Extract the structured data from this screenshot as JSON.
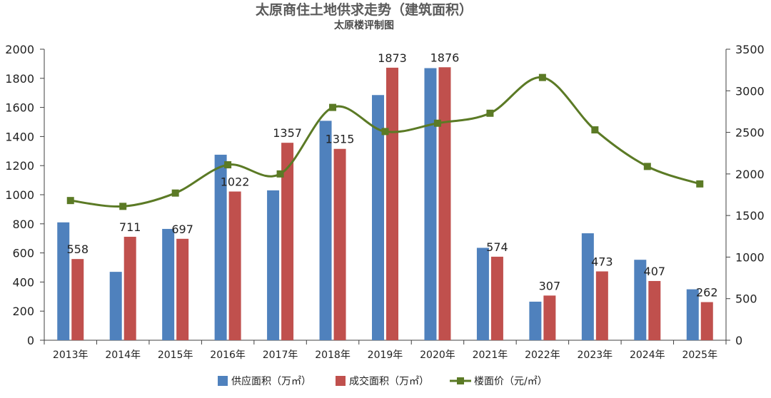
{
  "chart_data": {
    "type": "bar",
    "title": "太原商住土地供求走势（建筑面积）",
    "subtitle": "太原楼评制图",
    "categories": [
      "2013年",
      "2014年",
      "2015年",
      "2016年",
      "2017年",
      "2018年",
      "2019年",
      "2020年",
      "2021年",
      "2022年",
      "2023年",
      "2024年",
      "2025年"
    ],
    "series": [
      {
        "name": "供应面积（万㎡）",
        "type": "bar",
        "axis": "left",
        "color": "#4f81bd",
        "values": [
          810,
          470,
          765,
          1275,
          1030,
          1508,
          1685,
          1870,
          635,
          265,
          735,
          553,
          350
        ]
      },
      {
        "name": "成交面积（万㎡）",
        "type": "bar",
        "axis": "left",
        "color": "#c0504d",
        "values": [
          558,
          711,
          697,
          1022,
          1357,
          1315,
          1873,
          1876,
          574,
          307,
          473,
          407,
          262
        ]
      },
      {
        "name": "楼面价（元/㎡）",
        "type": "line",
        "axis": "right",
        "color": "#5b7a25",
        "values": [
          1680,
          1610,
          1770,
          2110,
          2000,
          2800,
          2510,
          2610,
          2730,
          3160,
          2530,
          2090,
          1880
        ]
      }
    ],
    "data_labels": [
      "558",
      "711",
      "697",
      "1022",
      "1357",
      "1315",
      "1873",
      "1876",
      "574",
      "307",
      "473",
      "407",
      "262"
    ],
    "y_left": {
      "min": 0,
      "max": 2000,
      "step": 200,
      "ticks": [
        "0",
        "200",
        "400",
        "600",
        "800",
        "1000",
        "1200",
        "1400",
        "1600",
        "1800",
        "2000"
      ]
    },
    "y_right": {
      "min": 0,
      "max": 3500,
      "step": 500,
      "ticks": [
        "0",
        "500",
        "1000",
        "1500",
        "2000",
        "2500",
        "3000",
        "3500"
      ]
    },
    "legend_position": "bottom",
    "grid": false
  }
}
